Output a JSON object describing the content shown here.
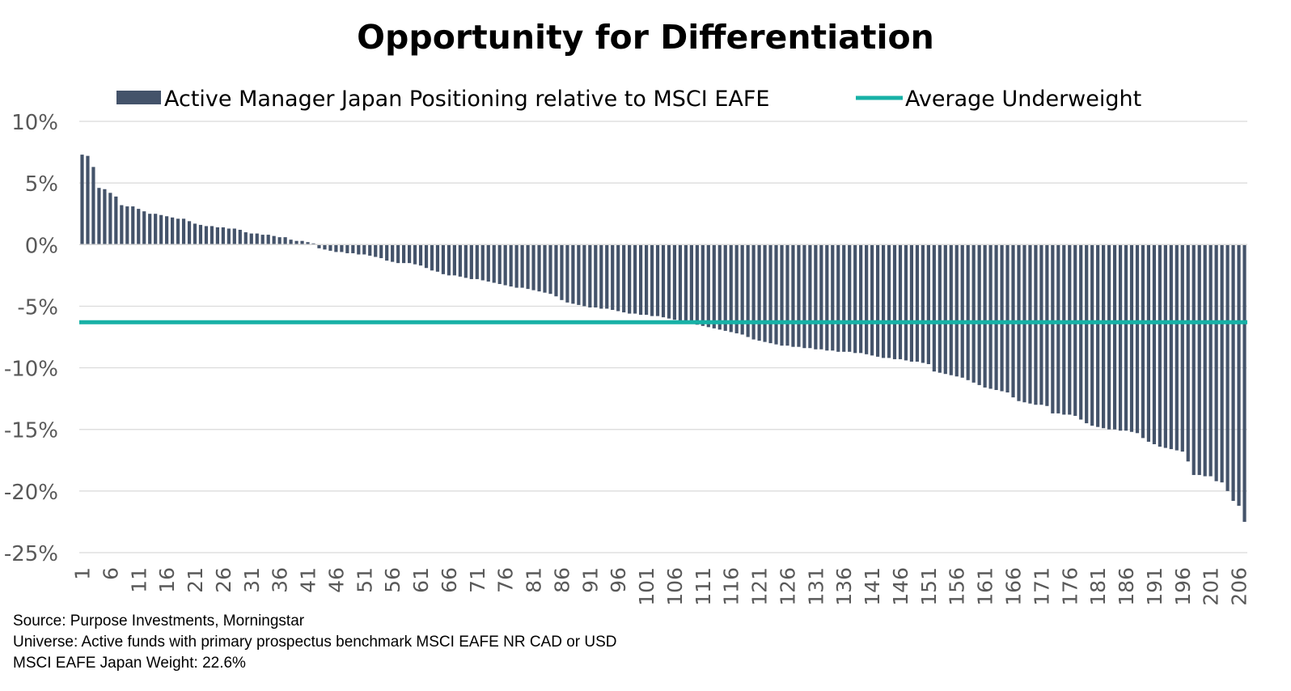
{
  "chart_data": {
    "type": "bar",
    "title": "Opportunity for Differentiation",
    "xlabel": "",
    "ylabel": "",
    "ylim": [
      -25,
      10
    ],
    "yticks": [
      "10%",
      "5%",
      "0%",
      "-5%",
      "-10%",
      "-15%",
      "-20%",
      "-25%"
    ],
    "ytick_values": [
      10,
      5,
      0,
      -5,
      -10,
      -15,
      -20,
      -25
    ],
    "xtick_step": 5,
    "legend": {
      "position": "top",
      "bar_label": "Active Manager Japan Positioning relative to MSCI EAFE",
      "line_label": "Average Underweight"
    },
    "series": [
      {
        "name": "Active Manager Japan Positioning relative to MSCI EAFE",
        "kind": "bar",
        "values": [
          7.3,
          7.2,
          6.3,
          4.6,
          4.5,
          4.2,
          3.9,
          3.2,
          3.1,
          3.1,
          2.9,
          2.7,
          2.5,
          2.5,
          2.4,
          2.3,
          2.2,
          2.1,
          2.1,
          1.9,
          1.7,
          1.6,
          1.5,
          1.5,
          1.4,
          1.4,
          1.3,
          1.3,
          1.2,
          1.0,
          0.9,
          0.9,
          0.8,
          0.8,
          0.7,
          0.6,
          0.6,
          0.4,
          0.3,
          0.3,
          0.2,
          0.1,
          -0.3,
          -0.4,
          -0.5,
          -0.6,
          -0.6,
          -0.7,
          -0.7,
          -0.8,
          -0.8,
          -0.9,
          -1.0,
          -1.1,
          -1.3,
          -1.4,
          -1.5,
          -1.5,
          -1.5,
          -1.6,
          -1.7,
          -1.9,
          -2.1,
          -2.2,
          -2.4,
          -2.5,
          -2.5,
          -2.6,
          -2.7,
          -2.8,
          -2.8,
          -2.9,
          -3.0,
          -3.1,
          -3.2,
          -3.3,
          -3.4,
          -3.5,
          -3.5,
          -3.6,
          -3.7,
          -3.8,
          -3.9,
          -4.0,
          -4.2,
          -4.5,
          -4.7,
          -4.8,
          -4.9,
          -5.0,
          -5.1,
          -5.1,
          -5.2,
          -5.2,
          -5.3,
          -5.4,
          -5.5,
          -5.6,
          -5.6,
          -5.7,
          -5.7,
          -5.8,
          -5.8,
          -5.9,
          -6.0,
          -6.1,
          -6.2,
          -6.3,
          -6.4,
          -6.5,
          -6.6,
          -6.7,
          -6.8,
          -6.9,
          -7.0,
          -7.1,
          -7.2,
          -7.3,
          -7.5,
          -7.7,
          -7.8,
          -7.9,
          -8.0,
          -8.1,
          -8.2,
          -8.2,
          -8.3,
          -8.3,
          -8.4,
          -8.4,
          -8.5,
          -8.5,
          -8.6,
          -8.6,
          -8.7,
          -8.7,
          -8.7,
          -8.8,
          -8.8,
          -8.9,
          -9.0,
          -9.1,
          -9.2,
          -9.2,
          -9.3,
          -9.3,
          -9.4,
          -9.5,
          -9.5,
          -9.6,
          -9.7,
          -10.3,
          -10.4,
          -10.5,
          -10.6,
          -10.7,
          -10.8,
          -11.0,
          -11.2,
          -11.4,
          -11.6,
          -11.7,
          -11.8,
          -11.9,
          -12.0,
          -12.4,
          -12.7,
          -12.8,
          -12.9,
          -13.0,
          -13.0,
          -13.1,
          -13.7,
          -13.7,
          -13.8,
          -13.8,
          -13.9,
          -14.2,
          -14.5,
          -14.7,
          -14.8,
          -14.9,
          -15.0,
          -15.0,
          -15.1,
          -15.1,
          -15.2,
          -15.3,
          -15.7,
          -16.0,
          -16.2,
          -16.4,
          -16.5,
          -16.6,
          -16.7,
          -16.8,
          -17.6,
          -18.7,
          -18.7,
          -18.8,
          -18.8,
          -19.2,
          -19.3,
          -20.0,
          -20.8,
          -21.2,
          -22.5
        ]
      },
      {
        "name": "Average Underweight",
        "kind": "line",
        "value": -6.3
      }
    ],
    "colors": {
      "bar": "#44536a",
      "line": "#17b1a6",
      "grid": "#d9d9d9",
      "tick_text": "#595959"
    }
  },
  "footer": {
    "source": "Source: Purpose Investments, Morningstar",
    "universe": "Universe: Active funds with primary prospectus benchmark MSCI EAFE NR CAD or USD",
    "weight": "MSCI EAFE Japan Weight: 22.6%"
  }
}
